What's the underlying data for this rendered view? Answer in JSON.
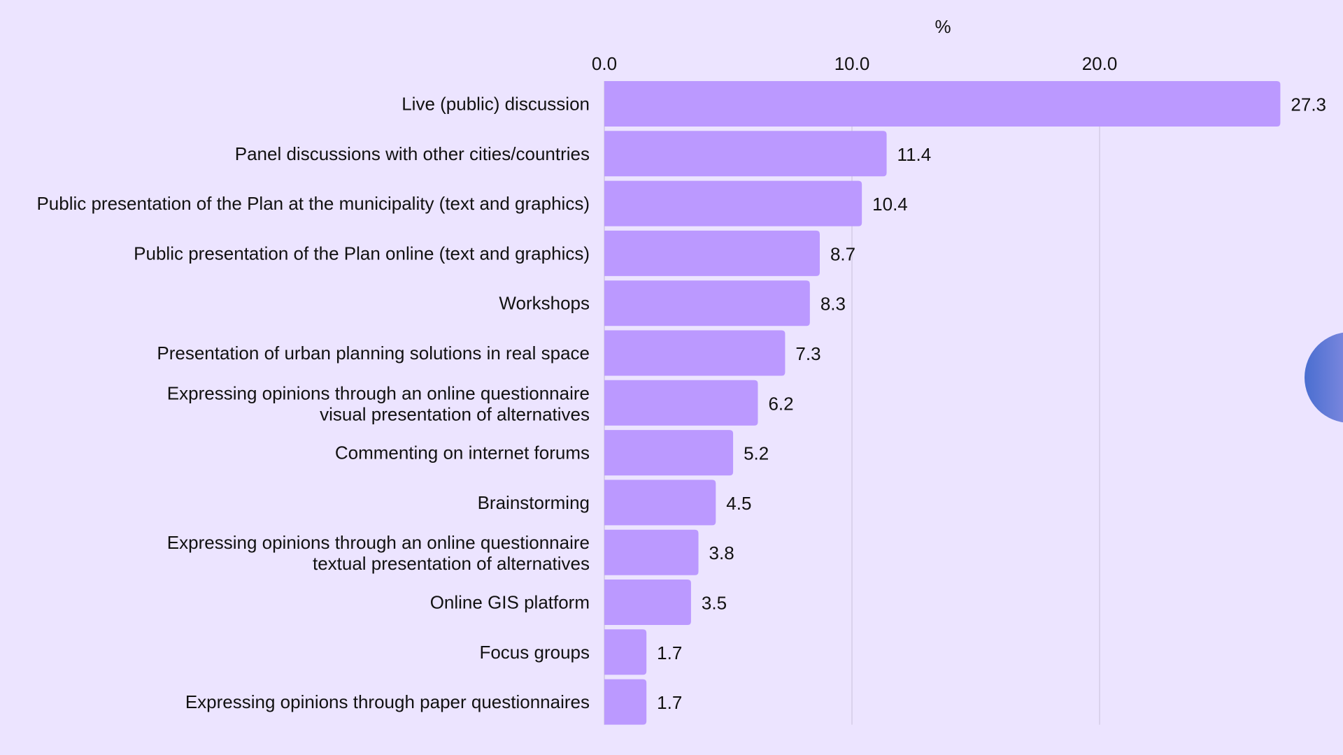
{
  "chart_data": {
    "type": "bar",
    "orientation": "horizontal",
    "title": "",
    "xlabel": "%",
    "ylabel": "",
    "xlim": [
      0,
      27.3
    ],
    "x_ticks": [
      0,
      10,
      20
    ],
    "x_tick_labels": [
      "0.0",
      "10.0",
      "20.0"
    ],
    "grid": true,
    "axis_position": "top",
    "categories": [
      [
        "Live (public) discussion"
      ],
      [
        "Panel discussions with other cities/countries"
      ],
      [
        "Public presentation of the Plan at the municipality (text and graphics)"
      ],
      [
        "Public presentation of the Plan online (text and graphics)"
      ],
      [
        "Workshops"
      ],
      [
        "Presentation of urban planning solutions in real space"
      ],
      [
        "Expressing opinions through an online questionnaire",
        "visual presentation of alternatives"
      ],
      [
        "Commenting on internet forums"
      ],
      [
        "Brainstorming"
      ],
      [
        "Expressing opinions through an online questionnaire",
        "textual presentation of alternatives"
      ],
      [
        "Online GIS platform"
      ],
      [
        "Focus groups"
      ],
      [
        "Expressing opinions through paper questionnaires"
      ]
    ],
    "values": [
      27.3,
      11.4,
      10.4,
      8.7,
      8.3,
      7.3,
      6.2,
      5.2,
      4.5,
      3.8,
      3.5,
      1.7,
      1.7
    ],
    "value_labels": [
      "27.3",
      "11.4",
      "10.4",
      "8.7",
      "8.3",
      "7.3",
      "6.2",
      "5.2",
      "4.5",
      "3.8",
      "3.5",
      "1.7",
      "1.7"
    ],
    "colors": {
      "bar": "#bb99ff",
      "background": "#ece4ff",
      "grid": "#d4cce6",
      "text": "#111111"
    }
  }
}
